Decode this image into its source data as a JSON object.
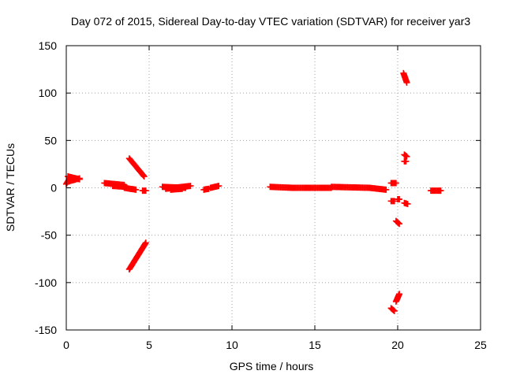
{
  "chart_data": {
    "type": "scatter",
    "title": "Day 072 of 2015, Sidereal Day-to-day VTEC variation (SDTVAR) for receiver yar3",
    "xlabel": "GPS time / hours",
    "ylabel": "SDTVAR / TECUs",
    "xlim": [
      0,
      25
    ],
    "ylim": [
      -150,
      150
    ],
    "xticks": [
      0,
      5,
      10,
      15,
      20,
      25
    ],
    "yticks": [
      -150,
      -100,
      -50,
      0,
      50,
      100,
      150
    ],
    "grid": true,
    "marker": "plus",
    "color": "#ff0000",
    "segments": [
      {
        "x0": 0.0,
        "x1": 0.25,
        "y0": 4,
        "y1": 11
      },
      {
        "x0": 0.1,
        "x1": 0.8,
        "y0": 12,
        "y1": 9
      },
      {
        "x0": 0.2,
        "x1": 0.8,
        "y0": 7,
        "y1": 10
      },
      {
        "x0": 2.3,
        "x1": 3.5,
        "y0": 5,
        "y1": 3
      },
      {
        "x0": 2.8,
        "x1": 3.6,
        "y0": 2,
        "y1": 1
      },
      {
        "x0": 3.5,
        "x1": 4.2,
        "y0": 0,
        "y1": -2
      },
      {
        "x0": 4.6,
        "x1": 4.8,
        "y0": -3,
        "y1": -3
      },
      {
        "x0": 3.8,
        "x1": 4.7,
        "y0": 31,
        "y1": 12
      },
      {
        "x0": 3.8,
        "x1": 4.8,
        "y0": -86,
        "y1": -58
      },
      {
        "x0": 5.8,
        "x1": 7.2,
        "y0": 1,
        "y1": 0
      },
      {
        "x0": 6.0,
        "x1": 7.5,
        "y0": -1,
        "y1": 2
      },
      {
        "x0": 6.3,
        "x1": 7.0,
        "y0": -2,
        "y1": -1
      },
      {
        "x0": 8.3,
        "x1": 8.6,
        "y0": -2,
        "y1": -1
      },
      {
        "x0": 8.7,
        "x1": 9.2,
        "y0": 0,
        "y1": 2
      },
      {
        "x0": 12.3,
        "x1": 13.7,
        "y0": 1,
        "y1": 0
      },
      {
        "x0": 13.7,
        "x1": 16.0,
        "y0": 0,
        "y1": 0
      },
      {
        "x0": 16.0,
        "x1": 18.3,
        "y0": 1,
        "y1": 0
      },
      {
        "x0": 18.3,
        "x1": 19.3,
        "y0": 0,
        "y1": -2
      },
      {
        "x0": 19.6,
        "x1": 19.9,
        "y0": 5,
        "y1": 5
      },
      {
        "x0": 19.6,
        "x1": 19.8,
        "y0": -14,
        "y1": -14
      },
      {
        "x0": 20.0,
        "x1": 20.1,
        "y0": -12,
        "y1": -12
      },
      {
        "x0": 20.4,
        "x1": 20.6,
        "y0": -16,
        "y1": -17
      },
      {
        "x0": 19.9,
        "x1": 20.1,
        "y0": -35,
        "y1": -38
      },
      {
        "x0": 19.6,
        "x1": 19.8,
        "y0": -127,
        "y1": -130
      },
      {
        "x0": 19.9,
        "x1": 20.1,
        "y0": -120,
        "y1": -112
      },
      {
        "x0": 20.35,
        "x1": 20.55,
        "y0": 121,
        "y1": 111
      },
      {
        "x0": 20.4,
        "x1": 20.55,
        "y0": 35,
        "y1": 33
      },
      {
        "x0": 20.4,
        "x1": 20.5,
        "y0": 28,
        "y1": 28
      },
      {
        "x0": 22.0,
        "x1": 22.6,
        "y0": -3,
        "y1": -3
      }
    ]
  }
}
